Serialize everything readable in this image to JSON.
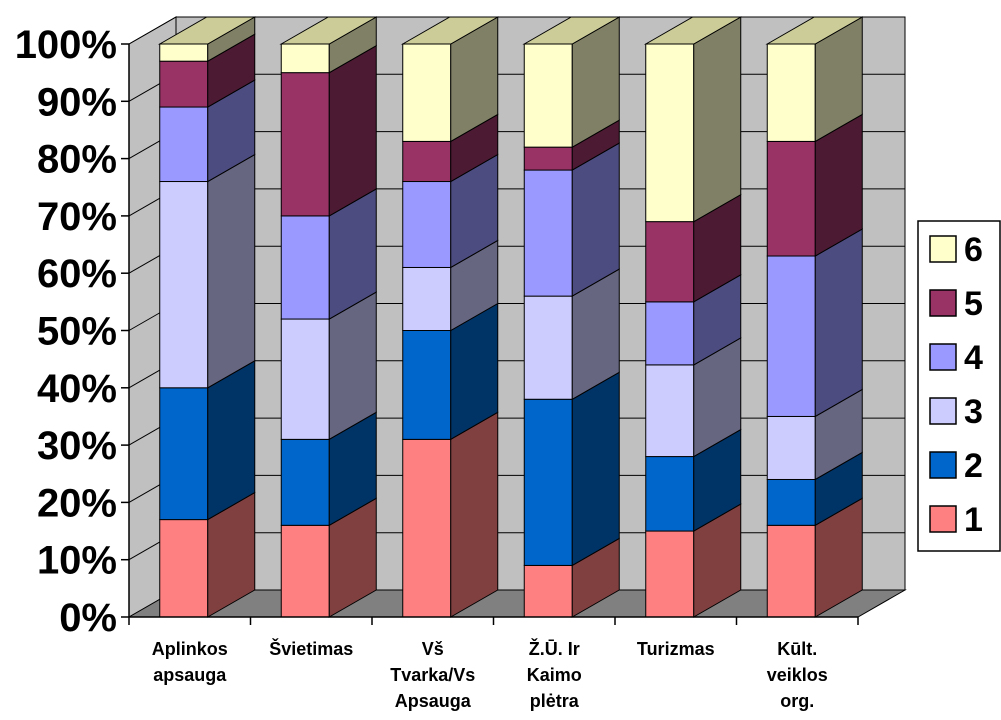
{
  "chart_data": {
    "type": "bar",
    "subtype": "stacked-100-percent-3d",
    "categories": [
      [
        "Aplinkos",
        "apsauga"
      ],
      [
        "Švietimas"
      ],
      [
        "Vš",
        "Tvarka/Vs",
        "Apsauga"
      ],
      [
        "Ž.Ū. Ir",
        "Kaimo",
        "plėtra"
      ],
      [
        "Turizmas"
      ],
      [
        "Kūlt.",
        "veiklos",
        "org."
      ]
    ],
    "series": [
      {
        "name": "1",
        "values": [
          17,
          16,
          31,
          9,
          15,
          16
        ]
      },
      {
        "name": "2",
        "values": [
          23,
          15,
          19,
          29,
          13,
          8
        ]
      },
      {
        "name": "3",
        "values": [
          36,
          21,
          11,
          18,
          16,
          11
        ]
      },
      {
        "name": "4",
        "values": [
          13,
          18,
          15,
          22,
          11,
          28
        ]
      },
      {
        "name": "5",
        "values": [
          8,
          25,
          7,
          4,
          14,
          20
        ]
      },
      {
        "name": "6",
        "values": [
          3,
          5,
          17,
          18,
          31,
          17
        ]
      }
    ],
    "yticks": [
      "0%",
      "10%",
      "20%",
      "30%",
      "40%",
      "50%",
      "60%",
      "70%",
      "80%",
      "90%",
      "100%"
    ],
    "ylim": [
      0,
      100
    ],
    "grid": true,
    "legend": "right",
    "colors": {
      "front": [
        "#ff8080",
        "#0066cc",
        "#ccccff",
        "#9999ff",
        "#993366",
        "#ffffcc"
      ],
      "side": [
        "#804040",
        "#003366",
        "#666680",
        "#4c4c80",
        "#4d1a33",
        "#808066"
      ]
    },
    "wall_color": "#c0c0c0",
    "floor_color": "#808080"
  }
}
